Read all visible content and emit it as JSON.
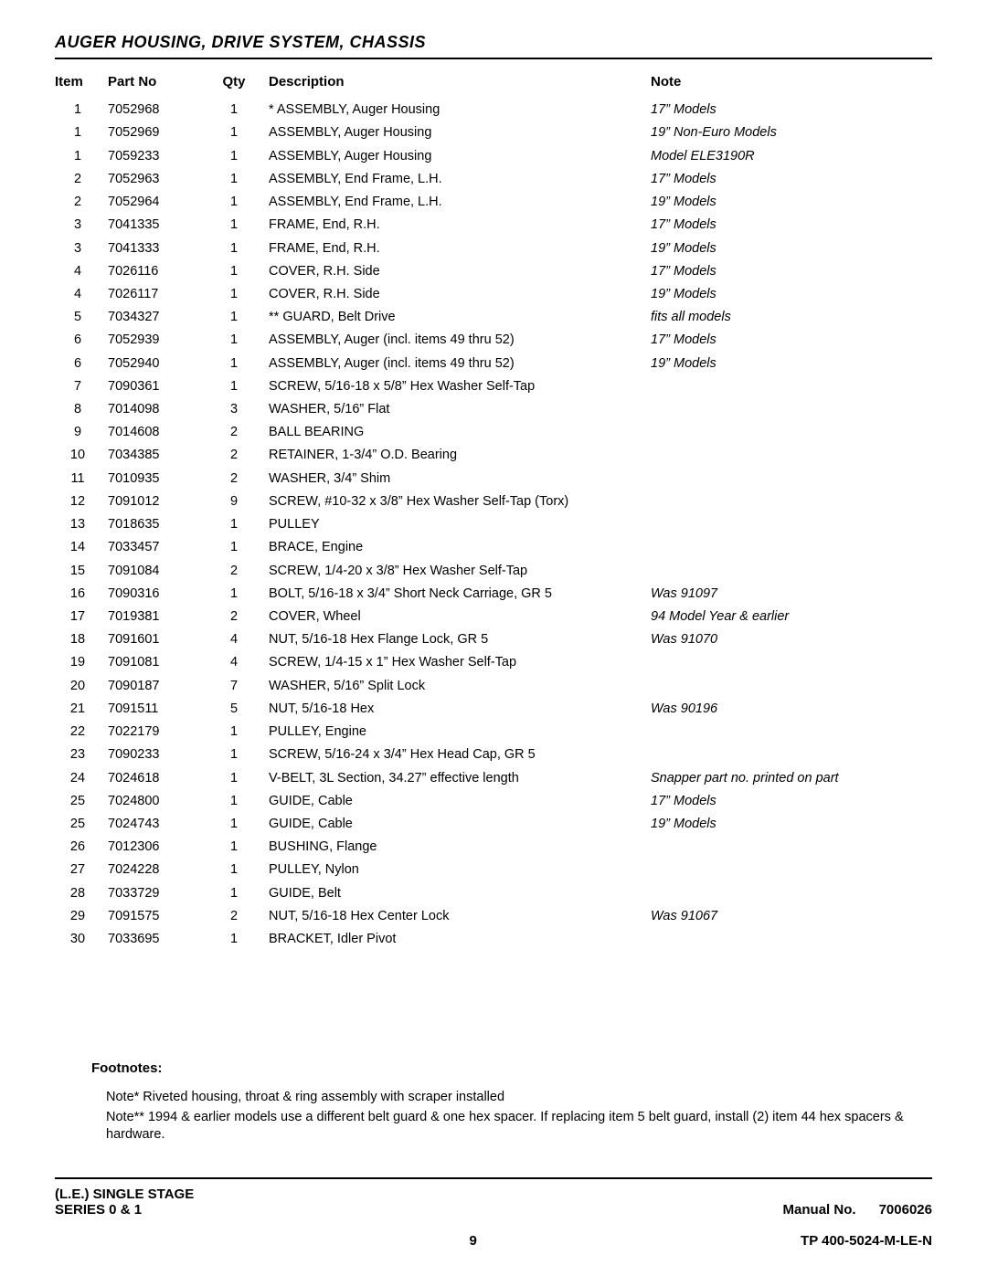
{
  "section_title": "AUGER HOUSING, DRIVE SYSTEM, CHASSIS",
  "headers": {
    "item": "Item",
    "part": "Part No",
    "qty": "Qty",
    "desc": "Description",
    "note": "Note"
  },
  "rows": [
    {
      "item": "1",
      "part": "7052968",
      "qty": "1",
      "desc": "* ASSEMBLY, Auger Housing",
      "note": "17” Models"
    },
    {
      "item": "1",
      "part": "7052969",
      "qty": "1",
      "desc": "ASSEMBLY, Auger Housing",
      "note": "19” Non-Euro Models"
    },
    {
      "item": "1",
      "part": "7059233",
      "qty": "1",
      "desc": "ASSEMBLY, Auger Housing",
      "note": "Model ELE3190R"
    },
    {
      "item": "2",
      "part": "7052963",
      "qty": "1",
      "desc": "ASSEMBLY, End Frame, L.H.",
      "note": "17” Models"
    },
    {
      "item": "2",
      "part": "7052964",
      "qty": "1",
      "desc": "ASSEMBLY, End Frame, L.H.",
      "note": "19” Models"
    },
    {
      "item": "3",
      "part": "7041335",
      "qty": "1",
      "desc": "FRAME, End, R.H.",
      "note": "17” Models"
    },
    {
      "item": "3",
      "part": "7041333",
      "qty": "1",
      "desc": "FRAME, End, R.H.",
      "note": "19” Models"
    },
    {
      "item": "4",
      "part": "7026116",
      "qty": "1",
      "desc": "COVER, R.H. Side",
      "note": "17” Models"
    },
    {
      "item": "4",
      "part": "7026117",
      "qty": "1",
      "desc": "COVER, R.H. Side",
      "note": "19” Models"
    },
    {
      "item": "5",
      "part": "7034327",
      "qty": "1",
      "desc": "** GUARD, Belt Drive",
      "note": "fits all models"
    },
    {
      "item": "6",
      "part": "7052939",
      "qty": "1",
      "desc": "ASSEMBLY, Auger (incl. items 49 thru 52)",
      "note": "17” Models"
    },
    {
      "item": "6",
      "part": "7052940",
      "qty": "1",
      "desc": "ASSEMBLY, Auger (incl. items 49 thru 52)",
      "note": "19” Models"
    },
    {
      "item": "7",
      "part": "7090361",
      "qty": "1",
      "desc": "SCREW, 5/16-18 x 5/8” Hex Washer Self-Tap",
      "note": ""
    },
    {
      "item": "8",
      "part": "7014098",
      "qty": "3",
      "desc": "WASHER, 5/16” Flat",
      "note": ""
    },
    {
      "item": "9",
      "part": "7014608",
      "qty": "2",
      "desc": "BALL BEARING",
      "note": ""
    },
    {
      "item": "10",
      "part": "7034385",
      "qty": "2",
      "desc": "RETAINER, 1-3/4” O.D. Bearing",
      "note": ""
    },
    {
      "item": "11",
      "part": "7010935",
      "qty": "2",
      "desc": "WASHER, 3/4” Shim",
      "note": ""
    },
    {
      "item": "12",
      "part": "7091012",
      "qty": "9",
      "desc": "SCREW, #10-32 x 3/8” Hex Washer Self-Tap (Torx)",
      "note": ""
    },
    {
      "item": "13",
      "part": "7018635",
      "qty": "1",
      "desc": "PULLEY",
      "note": ""
    },
    {
      "item": "14",
      "part": "7033457",
      "qty": "1",
      "desc": "BRACE, Engine",
      "note": ""
    },
    {
      "item": "15",
      "part": "7091084",
      "qty": "2",
      "desc": "SCREW, 1/4-20 x 3/8” Hex Washer Self-Tap",
      "note": ""
    },
    {
      "item": "16",
      "part": "7090316",
      "qty": "1",
      "desc": "BOLT, 5/16-18 x 3/4” Short Neck Carriage, GR 5",
      "note": "Was 91097"
    },
    {
      "item": "17",
      "part": "7019381",
      "qty": "2",
      "desc": "COVER, Wheel",
      "note": "94 Model Year & earlier"
    },
    {
      "item": "18",
      "part": "7091601",
      "qty": "4",
      "desc": "NUT, 5/16-18 Hex Flange Lock, GR 5",
      "note": "Was 91070"
    },
    {
      "item": "19",
      "part": "7091081",
      "qty": "4",
      "desc": "SCREW, 1/4-15 x 1” Hex Washer Self-Tap",
      "note": ""
    },
    {
      "item": "20",
      "part": "7090187",
      "qty": "7",
      "desc": "WASHER, 5/16” Split Lock",
      "note": ""
    },
    {
      "item": "21",
      "part": "7091511",
      "qty": "5",
      "desc": "NUT, 5/16-18 Hex",
      "note": "Was 90196"
    },
    {
      "item": "22",
      "part": "7022179",
      "qty": "1",
      "desc": "PULLEY, Engine",
      "note": ""
    },
    {
      "item": "23",
      "part": "7090233",
      "qty": "1",
      "desc": "SCREW, 5/16-24 x 3/4” Hex Head Cap, GR 5",
      "note": ""
    },
    {
      "item": "24",
      "part": "7024618",
      "qty": "1",
      "desc": "V-BELT, 3L Section, 34.27” effective length",
      "note": "Snapper part no. printed on part"
    },
    {
      "item": "25",
      "part": "7024800",
      "qty": "1",
      "desc": "GUIDE, Cable",
      "note": "17” Models"
    },
    {
      "item": "25",
      "part": "7024743",
      "qty": "1",
      "desc": "GUIDE, Cable",
      "note": "19” Models"
    },
    {
      "item": "26",
      "part": "7012306",
      "qty": "1",
      "desc": "BUSHING, Flange",
      "note": ""
    },
    {
      "item": "27",
      "part": "7024228",
      "qty": "1",
      "desc": "PULLEY, Nylon",
      "note": ""
    },
    {
      "item": "28",
      "part": "7033729",
      "qty": "1",
      "desc": "GUIDE, Belt",
      "note": ""
    },
    {
      "item": "29",
      "part": "7091575",
      "qty": "2",
      "desc": "NUT, 5/16-18 Hex Center Lock",
      "note": "Was 91067"
    },
    {
      "item": "30",
      "part": "7033695",
      "qty": "1",
      "desc": "BRACKET, Idler Pivot",
      "note": ""
    }
  ],
  "footnotes": {
    "heading": "Footnotes:",
    "lines": [
      "Note* Riveted housing, throat & ring assembly with scraper installed",
      "Note** 1994 & earlier models use a different belt guard & one hex spacer. If replacing item 5 belt guard, install (2) item 44 hex spacers & hardware."
    ]
  },
  "footer": {
    "left_line1": "(L.E.) SINGLE STAGE",
    "left_line2": "SERIES 0 & 1",
    "page_no": "9",
    "right_line1_a": "Manual No.",
    "right_line1_b": "7006026",
    "right_line2": "TP 400-5024-M-LE-N"
  }
}
